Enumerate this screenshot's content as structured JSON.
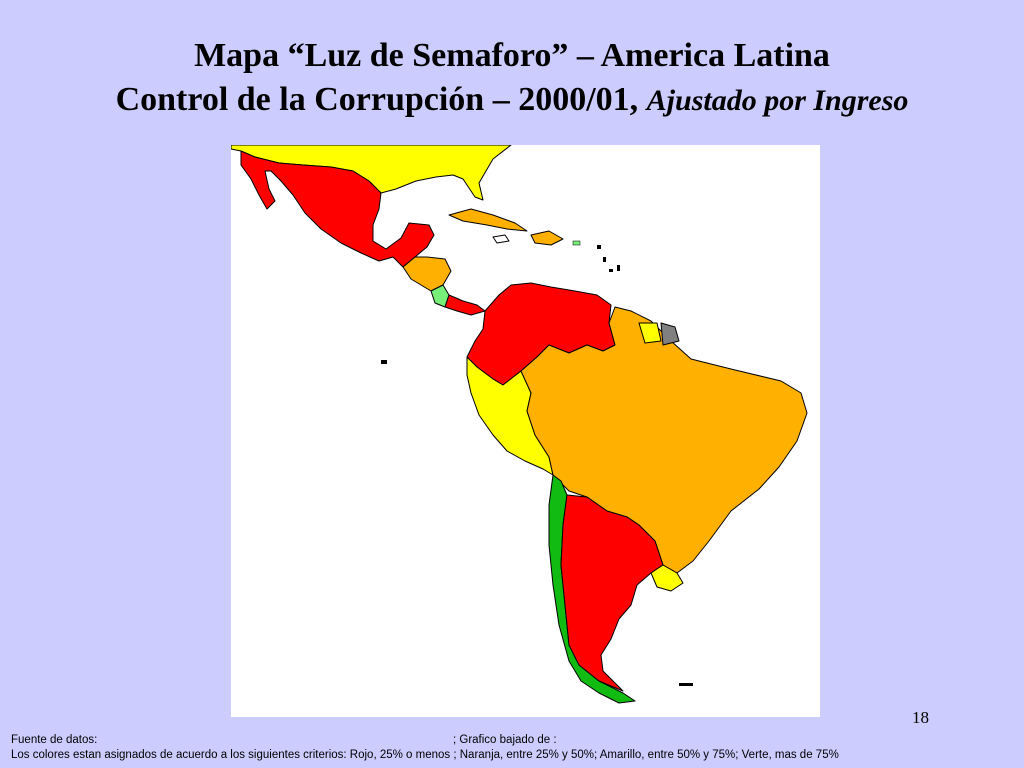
{
  "slide": {
    "title_line1": "Mapa “Luz de Semaforo” – America Latina",
    "title_line2": "Control de la Corrupción – 2000/01,",
    "title_line2_italic": "Ajustado por Ingreso",
    "page_number": "18"
  },
  "footer": {
    "source_label": "Fuente de datos:",
    "graph_label": "; Grafico bajado de :",
    "criteria_text": "Los colores estan asignados de acuerdo a los siguientes criterios:  Rojo, 25% o menos ;  Naranja, entre 25% y  50%;  Amarillo, entre 50% y 75%;  Verte, mas de 75%"
  },
  "map_colors": {
    "red": "#ff0000",
    "orange": "#ffb000",
    "yellow": "#ffff00",
    "green": "#11bb11",
    "light_green": "#77ee77",
    "gray": "#808080",
    "border": "#000000",
    "background": "#ccccff"
  }
}
